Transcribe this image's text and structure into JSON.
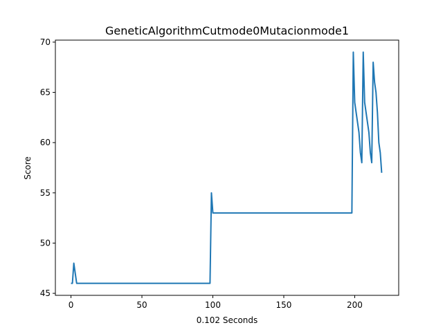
{
  "chart_data": {
    "type": "line",
    "title": "GeneticAlgorithmCutmode0Mutacionmode1",
    "xlabel": "0.102 Seconds",
    "ylabel": "Score",
    "xlim": [
      -11,
      231
    ],
    "ylim": [
      44.8,
      70.2
    ],
    "xticks": [
      0,
      50,
      100,
      150,
      200
    ],
    "yticks": [
      45,
      50,
      55,
      60,
      65,
      70
    ],
    "grid": false,
    "line_color": "#1f77b4",
    "series": [
      {
        "points": [
          [
            0,
            46
          ],
          [
            1,
            46
          ],
          [
            2,
            48
          ],
          [
            3,
            47
          ],
          [
            4,
            46
          ],
          [
            50,
            46
          ],
          [
            98,
            46
          ],
          [
            99,
            55
          ],
          [
            100,
            53
          ],
          [
            150,
            53
          ],
          [
            198,
            53
          ],
          [
            199,
            69
          ],
          [
            200,
            64
          ],
          [
            202,
            62
          ],
          [
            203,
            61
          ],
          [
            204,
            59
          ],
          [
            205,
            58
          ],
          [
            206,
            69
          ],
          [
            207,
            64
          ],
          [
            209,
            62
          ],
          [
            210,
            61
          ],
          [
            211,
            59
          ],
          [
            212,
            58
          ],
          [
            213,
            68
          ],
          [
            214,
            66
          ],
          [
            215,
            65
          ],
          [
            216,
            63
          ],
          [
            217,
            60
          ],
          [
            218,
            59
          ],
          [
            219,
            57
          ]
        ]
      }
    ]
  }
}
